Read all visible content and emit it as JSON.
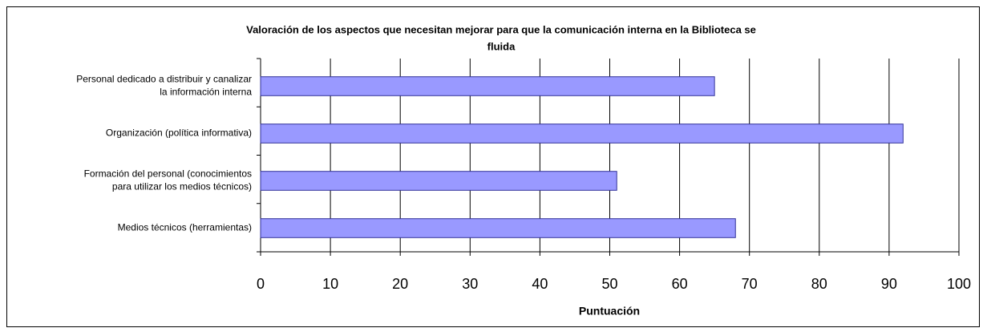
{
  "chart_data": {
    "type": "bar",
    "orientation": "horizontal",
    "title": "Valoración de los aspectos que necesitan mejorar para que la comunicación interna en la Biblioteca se\nfluida",
    "xlabel": "Puntuación",
    "categories": [
      "Personal dedicado a distribuir y canalizar\nla información interna",
      "Organización (política informativa)",
      "Formación del personal (conocimientos\npara utilizar los medios técnicos)",
      "Medios técnicos (herramientas)"
    ],
    "values": [
      65,
      92,
      51,
      68
    ],
    "color": "#9999ff",
    "xlim": [
      0,
      100
    ],
    "xticks": [
      0,
      10,
      20,
      30,
      40,
      50,
      60,
      70,
      80,
      90,
      100
    ],
    "grid": true
  }
}
